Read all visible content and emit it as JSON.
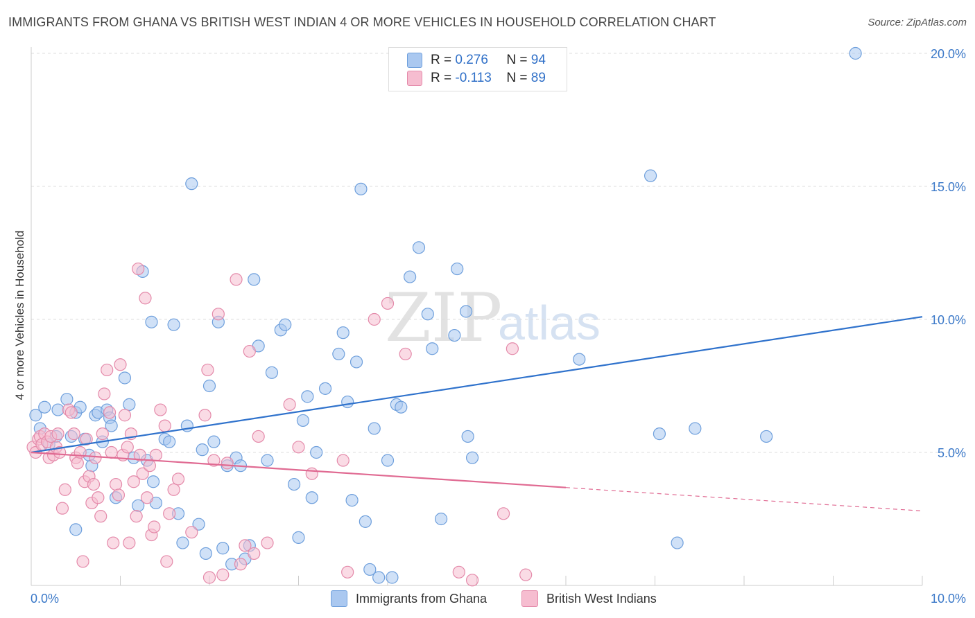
{
  "title": "IMMIGRANTS FROM GHANA VS BRITISH WEST INDIAN 4 OR MORE VEHICLES IN HOUSEHOLD CORRELATION CHART",
  "source": "Source: ZipAtlas.com",
  "watermark": {
    "zip": "ZIP",
    "atlas": "atlas"
  },
  "colors": {
    "blue_fill": "#aac8f0",
    "blue_stroke": "#6e9fdc",
    "blue_line": "#2f72cc",
    "pink_fill": "#f6bdd0",
    "pink_stroke": "#e48aaa",
    "pink_line": "#e06a92",
    "axis_text": "#3a78c8"
  },
  "legend_top": {
    "rows": [
      {
        "r_label": "R =",
        "r_value": "0.276",
        "n_label": "N =",
        "n_value": "94"
      },
      {
        "r_label": "R =",
        "r_value": "-0.113",
        "n_label": "N =",
        "n_value": "89"
      }
    ]
  },
  "legend_bottom": [
    "Immigrants from Ghana",
    "British West Indians"
  ],
  "chart_data": {
    "type": "scatter",
    "title": "IMMIGRANTS FROM GHANA VS BRITISH WEST INDIAN 4 OR MORE VEHICLES IN HOUSEHOLD CORRELATION CHART",
    "xlabel": "",
    "ylabel": "4 or more Vehicles in Household",
    "xlim": [
      0,
      10
    ],
    "ylim": [
      0,
      20
    ],
    "x_tick_labels": [
      "0.0%",
      "10.0%"
    ],
    "y_tick_labels": [
      "5.0%",
      "10.0%",
      "15.0%",
      "20.0%"
    ],
    "y_ticks": [
      5,
      10,
      15,
      20
    ],
    "grid": true,
    "legend_position": "top-center",
    "series": [
      {
        "name": "Immigrants from Ghana",
        "r": 0.276,
        "n": 94,
        "trend": {
          "x": [
            0,
            10
          ],
          "y": [
            5.0,
            10.1
          ],
          "dashed_from": null
        },
        "points": [
          [
            0.05,
            6.4
          ],
          [
            0.1,
            5.9
          ],
          [
            0.15,
            6.7
          ],
          [
            0.2,
            5.3
          ],
          [
            0.28,
            5.6
          ],
          [
            0.3,
            6.6
          ],
          [
            0.4,
            7.0
          ],
          [
            0.45,
            5.6
          ],
          [
            0.5,
            6.5
          ],
          [
            0.55,
            6.7
          ],
          [
            0.6,
            5.5
          ],
          [
            0.65,
            4.9
          ],
          [
            0.68,
            4.5
          ],
          [
            0.72,
            6.4
          ],
          [
            0.75,
            6.5
          ],
          [
            0.8,
            5.4
          ],
          [
            0.85,
            6.6
          ],
          [
            0.88,
            6.3
          ],
          [
            0.9,
            6.0
          ],
          [
            0.95,
            3.3
          ],
          [
            1.05,
            7.8
          ],
          [
            1.1,
            6.8
          ],
          [
            1.15,
            4.8
          ],
          [
            1.2,
            3.0
          ],
          [
            1.25,
            11.8
          ],
          [
            1.3,
            4.7
          ],
          [
            1.35,
            9.9
          ],
          [
            1.37,
            3.9
          ],
          [
            1.4,
            3.1
          ],
          [
            1.5,
            5.5
          ],
          [
            1.55,
            5.4
          ],
          [
            1.6,
            9.8
          ],
          [
            1.65,
            2.7
          ],
          [
            1.7,
            1.6
          ],
          [
            1.75,
            6.0
          ],
          [
            1.8,
            15.1
          ],
          [
            1.88,
            2.3
          ],
          [
            1.92,
            5.1
          ],
          [
            1.96,
            1.2
          ],
          [
            2.0,
            7.5
          ],
          [
            2.05,
            5.4
          ],
          [
            2.1,
            9.9
          ],
          [
            2.15,
            1.4
          ],
          [
            2.2,
            4.5
          ],
          [
            2.25,
            0.8
          ],
          [
            2.3,
            4.8
          ],
          [
            2.35,
            4.5
          ],
          [
            2.4,
            1.0
          ],
          [
            2.45,
            1.5
          ],
          [
            2.5,
            11.5
          ],
          [
            2.55,
            9.0
          ],
          [
            2.65,
            4.7
          ],
          [
            2.7,
            8.0
          ],
          [
            2.8,
            9.6
          ],
          [
            2.85,
            9.8
          ],
          [
            2.95,
            3.8
          ],
          [
            3.0,
            1.8
          ],
          [
            3.05,
            6.2
          ],
          [
            3.1,
            7.1
          ],
          [
            3.15,
            3.3
          ],
          [
            3.2,
            5.0
          ],
          [
            3.3,
            7.4
          ],
          [
            3.45,
            8.7
          ],
          [
            3.5,
            9.5
          ],
          [
            3.55,
            6.9
          ],
          [
            3.6,
            3.2
          ],
          [
            3.65,
            8.4
          ],
          [
            3.7,
            14.9
          ],
          [
            3.75,
            2.4
          ],
          [
            3.8,
            0.6
          ],
          [
            3.85,
            5.9
          ],
          [
            3.9,
            0.3
          ],
          [
            4.0,
            4.7
          ],
          [
            4.05,
            0.3
          ],
          [
            4.1,
            6.8
          ],
          [
            4.15,
            6.7
          ],
          [
            4.25,
            11.6
          ],
          [
            4.35,
            12.7
          ],
          [
            4.45,
            10.2
          ],
          [
            4.5,
            8.9
          ],
          [
            4.6,
            2.5
          ],
          [
            4.75,
            9.4
          ],
          [
            4.78,
            11.9
          ],
          [
            4.88,
            10.3
          ],
          [
            4.9,
            5.6
          ],
          [
            4.95,
            4.8
          ],
          [
            6.15,
            8.5
          ],
          [
            6.95,
            15.4
          ],
          [
            7.05,
            5.7
          ],
          [
            7.25,
            1.6
          ],
          [
            7.45,
            5.9
          ],
          [
            8.25,
            5.6
          ],
          [
            9.25,
            20.0
          ],
          [
            0.5,
            2.1
          ]
        ]
      },
      {
        "name": "British West Indians",
        "r": -0.113,
        "n": 89,
        "trend": {
          "x": [
            0,
            10
          ],
          "y": [
            5.0,
            2.8
          ],
          "dashed_from": 6.0
        },
        "points": [
          [
            0.02,
            5.2
          ],
          [
            0.05,
            5.0
          ],
          [
            0.08,
            5.5
          ],
          [
            0.1,
            5.6
          ],
          [
            0.12,
            5.3
          ],
          [
            0.15,
            5.7
          ],
          [
            0.18,
            5.4
          ],
          [
            0.2,
            4.8
          ],
          [
            0.22,
            5.6
          ],
          [
            0.25,
            4.9
          ],
          [
            0.28,
            5.2
          ],
          [
            0.3,
            5.7
          ],
          [
            0.32,
            5.0
          ],
          [
            0.35,
            2.9
          ],
          [
            0.38,
            3.6
          ],
          [
            0.42,
            6.6
          ],
          [
            0.45,
            6.5
          ],
          [
            0.48,
            5.7
          ],
          [
            0.5,
            4.8
          ],
          [
            0.52,
            4.6
          ],
          [
            0.55,
            5.0
          ],
          [
            0.58,
            0.9
          ],
          [
            0.6,
            3.9
          ],
          [
            0.62,
            5.5
          ],
          [
            0.65,
            4.1
          ],
          [
            0.68,
            3.1
          ],
          [
            0.7,
            3.8
          ],
          [
            0.72,
            4.8
          ],
          [
            0.75,
            3.3
          ],
          [
            0.78,
            2.6
          ],
          [
            0.8,
            5.7
          ],
          [
            0.82,
            7.2
          ],
          [
            0.85,
            8.1
          ],
          [
            0.88,
            6.5
          ],
          [
            0.9,
            5.0
          ],
          [
            0.92,
            1.6
          ],
          [
            0.95,
            3.8
          ],
          [
            0.98,
            3.4
          ],
          [
            1.0,
            8.3
          ],
          [
            1.03,
            4.9
          ],
          [
            1.05,
            6.4
          ],
          [
            1.08,
            5.2
          ],
          [
            1.1,
            1.6
          ],
          [
            1.12,
            5.7
          ],
          [
            1.15,
            3.9
          ],
          [
            1.18,
            2.6
          ],
          [
            1.2,
            11.9
          ],
          [
            1.22,
            4.9
          ],
          [
            1.25,
            4.2
          ],
          [
            1.28,
            10.8
          ],
          [
            1.3,
            3.3
          ],
          [
            1.33,
            4.5
          ],
          [
            1.35,
            1.9
          ],
          [
            1.38,
            2.2
          ],
          [
            1.4,
            4.9
          ],
          [
            1.45,
            6.6
          ],
          [
            1.5,
            6.0
          ],
          [
            1.52,
            0.9
          ],
          [
            1.55,
            2.7
          ],
          [
            1.6,
            3.6
          ],
          [
            1.65,
            4.0
          ],
          [
            1.8,
            2.0
          ],
          [
            1.95,
            6.4
          ],
          [
            1.98,
            8.1
          ],
          [
            2.0,
            0.3
          ],
          [
            2.05,
            4.7
          ],
          [
            2.1,
            10.2
          ],
          [
            2.15,
            0.4
          ],
          [
            2.2,
            4.6
          ],
          [
            2.3,
            11.5
          ],
          [
            2.35,
            0.8
          ],
          [
            2.4,
            1.5
          ],
          [
            2.45,
            8.8
          ],
          [
            2.5,
            1.2
          ],
          [
            2.55,
            5.6
          ],
          [
            2.65,
            1.6
          ],
          [
            2.9,
            6.8
          ],
          [
            3.0,
            5.2
          ],
          [
            3.15,
            4.2
          ],
          [
            3.5,
            4.7
          ],
          [
            3.55,
            0.5
          ],
          [
            3.85,
            10.0
          ],
          [
            4.0,
            10.6
          ],
          [
            4.2,
            8.7
          ],
          [
            4.8,
            0.5
          ],
          [
            4.95,
            0.2
          ],
          [
            5.3,
            2.7
          ],
          [
            5.4,
            8.9
          ],
          [
            5.55,
            0.4
          ]
        ]
      }
    ]
  }
}
